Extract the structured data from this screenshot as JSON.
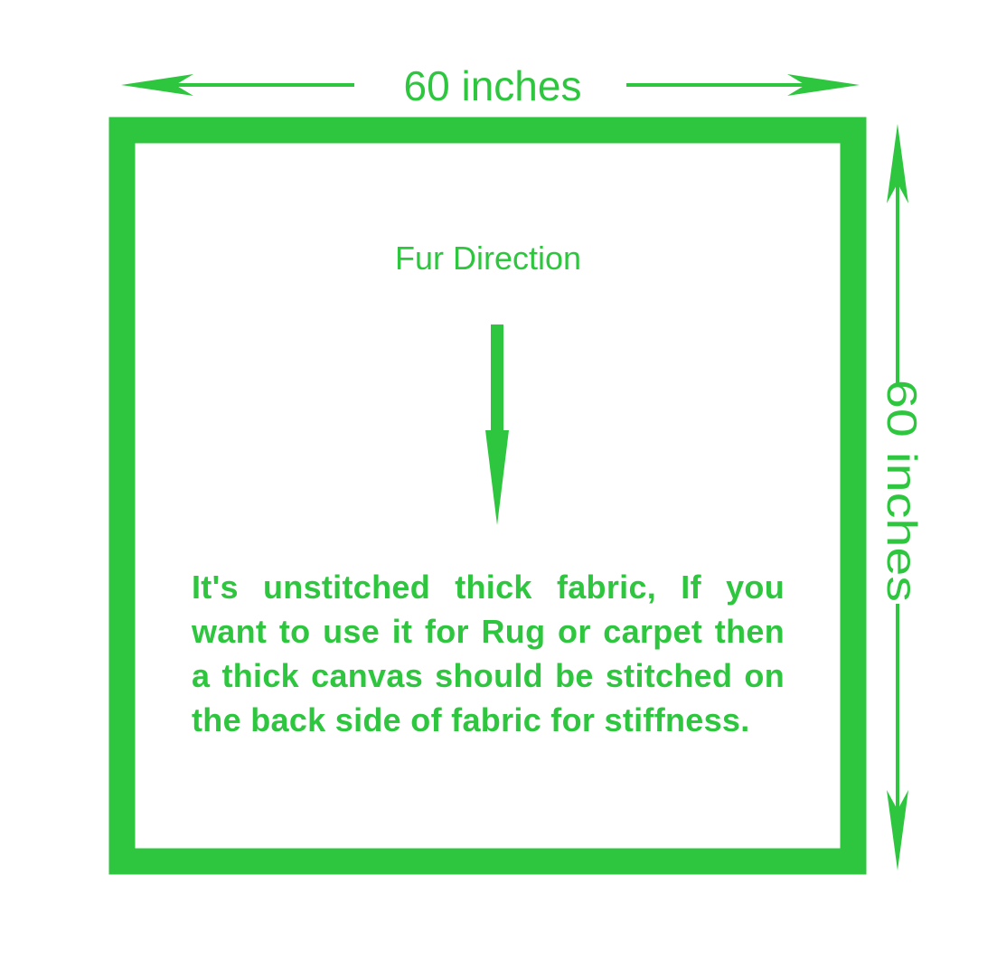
{
  "colors": {
    "accent": "#2ec63e",
    "background": "#ffffff"
  },
  "dimensions": {
    "width_label": "60 inches",
    "height_label": "60 inches"
  },
  "fur": {
    "label": "Fur Direction",
    "arrow_icon": "arrow-down-icon"
  },
  "note": {
    "text": "It's unstitched thick fabric, If you want to use it for Rug or carpet then a thick canvas should be stitched on the back side of fabric for stiffness."
  }
}
